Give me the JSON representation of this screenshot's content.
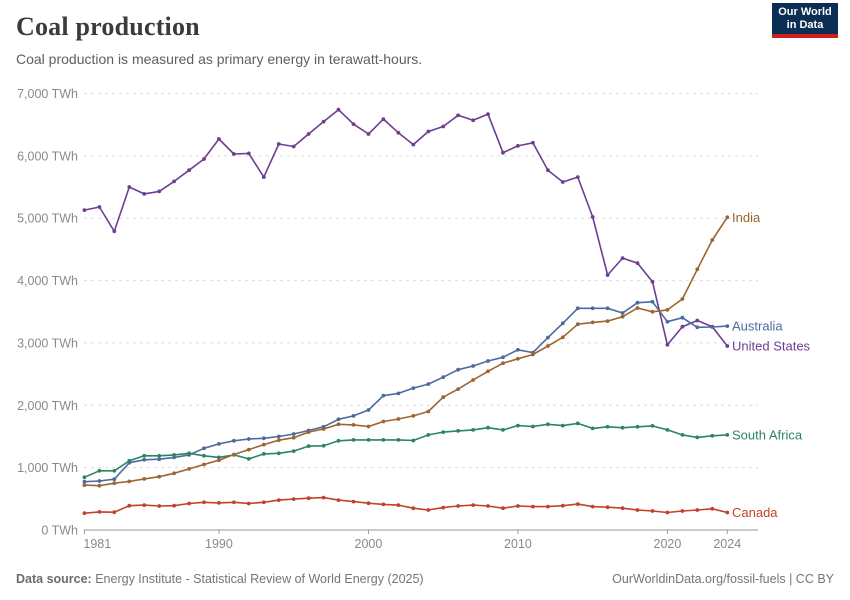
{
  "header": {
    "title": "Coal production",
    "subtitle": "Coal production is measured as primary energy in terawatt-hours.",
    "logo_line1": "Our World",
    "logo_line2": "in Data"
  },
  "footer": {
    "source_label": "Data source:",
    "source_text": " Energy Institute - Statistical Review of World Energy (2025)",
    "link_text": "OurWorldinData.org/fossil-fuels | CC BY"
  },
  "chart_data": {
    "type": "line",
    "title": "Coal production",
    "ylabel": "",
    "xlabel": "",
    "unit": "TWh",
    "xlim": [
      1981,
      2024
    ],
    "ylim": [
      0,
      7000
    ],
    "grid": true,
    "legend_position": "line-end-labels",
    "x_ticks": [
      {
        "year": 1981,
        "label": "1981"
      },
      {
        "year": 1990,
        "label": "1990"
      },
      {
        "year": 2000,
        "label": "2000"
      },
      {
        "year": 2010,
        "label": "2010"
      },
      {
        "year": 2020,
        "label": "2020"
      },
      {
        "year": 2024,
        "label": "2024"
      }
    ],
    "y_ticks": [
      {
        "value": 0,
        "label": "0 TWh"
      },
      {
        "value": 1000,
        "label": "1,000 TWh"
      },
      {
        "value": 2000,
        "label": "2,000 TWh"
      },
      {
        "value": 3000,
        "label": "3,000 TWh"
      },
      {
        "value": 4000,
        "label": "4,000 TWh"
      },
      {
        "value": 5000,
        "label": "5,000 TWh"
      },
      {
        "value": 6000,
        "label": "6,000 TWh"
      },
      {
        "value": 7000,
        "label": "7,000 TWh"
      }
    ],
    "x": [
      1981,
      1982,
      1983,
      1984,
      1985,
      1986,
      1987,
      1988,
      1989,
      1990,
      1991,
      1992,
      1993,
      1994,
      1995,
      1996,
      1997,
      1998,
      1999,
      2000,
      2001,
      2002,
      2003,
      2004,
      2005,
      2006,
      2007,
      2008,
      2009,
      2010,
      2011,
      2012,
      2013,
      2014,
      2015,
      2016,
      2017,
      2018,
      2019,
      2020,
      2021,
      2022,
      2023,
      2024
    ],
    "series": [
      {
        "name": "United States",
        "color": "#6d3e91",
        "values": [
          5130,
          5180,
          4790,
          5500,
          5390,
          5430,
          5590,
          5770,
          5950,
          6270,
          6030,
          6040,
          5660,
          6190,
          6150,
          6350,
          6550,
          6740,
          6510,
          6350,
          6590,
          6370,
          6180,
          6390,
          6470,
          6650,
          6570,
          6670,
          6050,
          6160,
          6210,
          5770,
          5580,
          5660,
          5020,
          4090,
          4360,
          4280,
          3980,
          2970,
          3260,
          3360,
          3260,
          2950
        ]
      },
      {
        "name": "Australia",
        "color": "#4c6a9c",
        "values": [
          775,
          785,
          815,
          1080,
          1125,
          1135,
          1165,
          1205,
          1310,
          1380,
          1430,
          1460,
          1470,
          1500,
          1540,
          1595,
          1655,
          1775,
          1830,
          1925,
          2155,
          2190,
          2275,
          2340,
          2450,
          2570,
          2630,
          2710,
          2770,
          2890,
          2845,
          3085,
          3315,
          3555,
          3555,
          3555,
          3480,
          3645,
          3660,
          3340,
          3405,
          3250,
          3255,
          3270
        ]
      },
      {
        "name": "South Africa",
        "color": "#2c8465",
        "values": [
          845,
          950,
          950,
          1110,
          1190,
          1190,
          1205,
          1230,
          1190,
          1165,
          1205,
          1140,
          1220,
          1230,
          1265,
          1345,
          1350,
          1430,
          1445,
          1445,
          1445,
          1445,
          1435,
          1525,
          1570,
          1590,
          1605,
          1640,
          1605,
          1675,
          1660,
          1695,
          1675,
          1710,
          1630,
          1655,
          1640,
          1655,
          1670,
          1605,
          1525,
          1485,
          1510,
          1525
        ]
      },
      {
        "name": "Canada",
        "color": "#c0432a",
        "values": [
          270,
          290,
          285,
          390,
          400,
          385,
          390,
          425,
          445,
          435,
          445,
          425,
          445,
          480,
          495,
          510,
          520,
          480,
          455,
          430,
          410,
          400,
          350,
          320,
          360,
          385,
          400,
          385,
          350,
          385,
          375,
          375,
          390,
          415,
          375,
          365,
          350,
          320,
          305,
          280,
          305,
          320,
          340,
          280
        ]
      },
      {
        "name": "India",
        "color": "#9d6530",
        "values": [
          720,
          710,
          750,
          780,
          820,
          855,
          910,
          980,
          1050,
          1120,
          1210,
          1290,
          1370,
          1440,
          1480,
          1570,
          1620,
          1695,
          1685,
          1660,
          1740,
          1780,
          1830,
          1900,
          2130,
          2260,
          2405,
          2545,
          2675,
          2745,
          2815,
          2950,
          3090,
          3300,
          3330,
          3350,
          3420,
          3560,
          3500,
          3530,
          3705,
          4180,
          4650,
          5015
        ]
      }
    ]
  }
}
